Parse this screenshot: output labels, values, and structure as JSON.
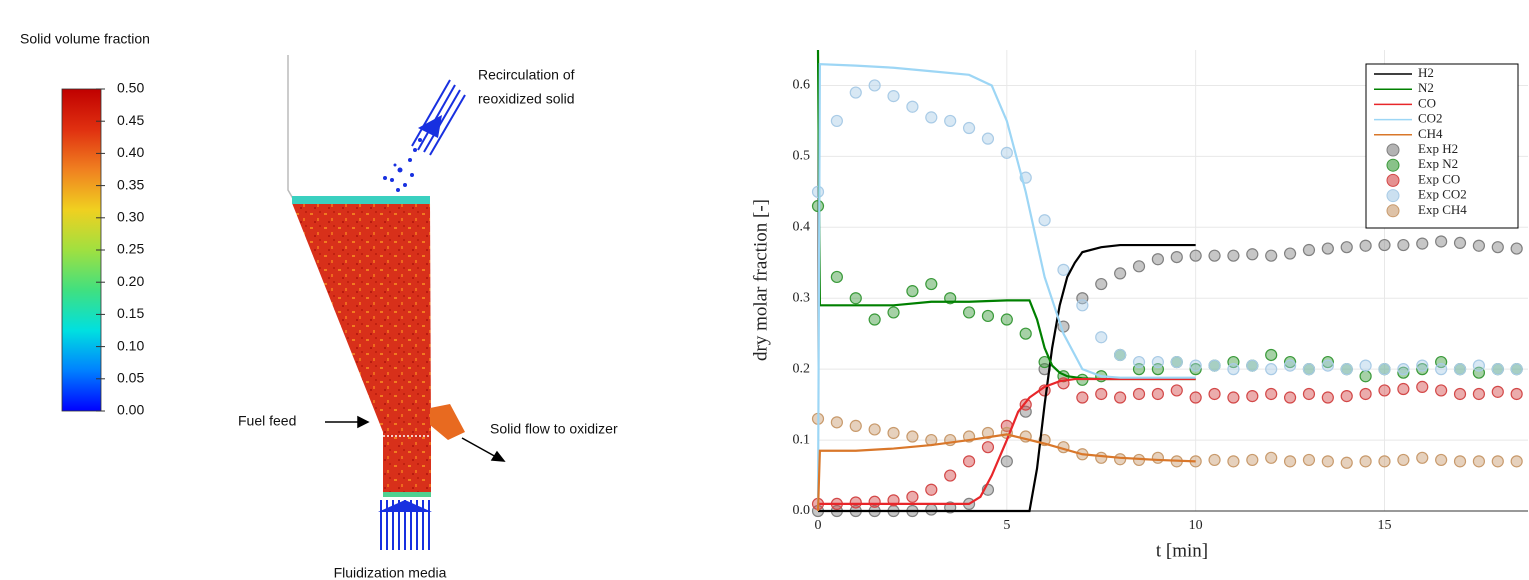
{
  "chart_data": [
    {
      "type": "colorbar",
      "title": "Solid volume fraction",
      "ylim": [
        0,
        0.5
      ],
      "yticks": [
        {
          "value": 0,
          "label": "0.00"
        },
        {
          "value": 0.05,
          "label": "0.05"
        },
        {
          "value": 0.1,
          "label": "0.10"
        },
        {
          "value": 0.15,
          "label": "0.15"
        },
        {
          "value": 0.2,
          "label": "0.20"
        },
        {
          "value": 0.25,
          "label": "0.25"
        },
        {
          "value": 0.3,
          "label": "0.30"
        },
        {
          "value": 0.35,
          "label": "0.35"
        },
        {
          "value": 0.4,
          "label": "0.40"
        },
        {
          "value": 0.45,
          "label": "0.45"
        },
        {
          "value": 0.5,
          "label": "0.50"
        }
      ],
      "colors": [
        "#0000ff",
        "#0080ff",
        "#00e0e0",
        "#40e080",
        "#a0e040",
        "#f0d020",
        "#f08020",
        "#e03010",
        "#c00000"
      ]
    },
    {
      "type": "line",
      "xlabel": "t [min]",
      "ylabel": "dry molar fraction [-]",
      "grid": true,
      "legend": "upper right",
      "xlim": [
        0,
        18.8
      ],
      "ylim": [
        0,
        0.65
      ],
      "xticks": [
        0,
        5,
        10,
        15
      ],
      "yticks": [
        {
          "value": 0,
          "label": "0.0"
        },
        0.1,
        0.2,
        0.3,
        0.4,
        0.5,
        0.6
      ],
      "x": [
        0,
        0.5,
        1,
        1.5,
        2,
        2.5,
        3,
        3.5,
        4,
        4.5,
        5,
        5.5,
        6,
        6.5,
        7,
        7.5,
        8,
        8.5,
        9,
        9.5,
        10,
        10.5,
        11,
        11.5,
        12,
        12.5,
        13,
        13.5,
        14,
        14.5,
        15,
        15.5,
        16,
        16.5,
        17,
        17.5,
        18,
        18.5
      ],
      "series": [
        {
          "name": "H2",
          "style": "line",
          "color": "#000000",
          "x": [
            0,
            5,
            5.6,
            5.8,
            6,
            6.2,
            6.4,
            6.6,
            6.8,
            7,
            7.5,
            8,
            9,
            10
          ],
          "values": [
            0,
            0,
            0,
            0.06,
            0.15,
            0.23,
            0.29,
            0.33,
            0.35,
            0.365,
            0.372,
            0.375,
            0.375,
            0.375
          ]
        },
        {
          "name": "N2",
          "style": "line",
          "color": "#008000",
          "x": [
            0,
            0.05,
            1,
            2,
            3,
            4,
            5,
            5.6,
            5.8,
            6,
            6.2,
            6.4,
            6.6,
            7,
            7.5,
            8,
            9,
            10
          ],
          "values": [
            0.65,
            0.29,
            0.29,
            0.29,
            0.295,
            0.295,
            0.297,
            0.297,
            0.27,
            0.23,
            0.205,
            0.195,
            0.19,
            0.187,
            0.186,
            0.186,
            0.186,
            0.186
          ]
        },
        {
          "name": "CO",
          "style": "line",
          "color": "#e8262a",
          "x": [
            0,
            1,
            2,
            3,
            4,
            4.3,
            4.6,
            5,
            5.3,
            5.6,
            6,
            6.4,
            6.8,
            7.5,
            8,
            9,
            10
          ],
          "values": [
            0.01,
            0.01,
            0.01,
            0.01,
            0.01,
            0.02,
            0.05,
            0.1,
            0.14,
            0.16,
            0.175,
            0.183,
            0.186,
            0.186,
            0.186,
            0.186,
            0.186
          ]
        },
        {
          "name": "CO2",
          "style": "line",
          "color": "#9dd6f5",
          "x": [
            0,
            0.05,
            1,
            2,
            3,
            4,
            4.6,
            5,
            5.5,
            6,
            6.5,
            7,
            7.5,
            8,
            9,
            10
          ],
          "values": [
            0,
            0.63,
            0.628,
            0.625,
            0.62,
            0.615,
            0.6,
            0.55,
            0.45,
            0.33,
            0.25,
            0.2,
            0.19,
            0.188,
            0.188,
            0.188
          ]
        },
        {
          "name": "CH4",
          "style": "line",
          "color": "#d9772a",
          "x": [
            0,
            0.05,
            1,
            2,
            3,
            4,
            5,
            6,
            7,
            8,
            9,
            10
          ],
          "values": [
            0,
            0.085,
            0.085,
            0.088,
            0.093,
            0.1,
            0.108,
            0.095,
            0.08,
            0.075,
            0.072,
            0.07
          ]
        },
        {
          "name": "Exp H2",
          "style": "marker",
          "color": "#808080",
          "values": [
            0,
            0,
            0,
            0,
            0,
            0,
            0.002,
            0.005,
            0.01,
            0.03,
            0.07,
            0.14,
            0.2,
            0.26,
            0.3,
            0.32,
            0.335,
            0.345,
            0.355,
            0.358,
            0.36,
            0.36,
            0.36,
            0.362,
            0.36,
            0.363,
            0.368,
            0.37,
            0.372,
            0.374,
            0.375,
            0.375,
            0.377,
            0.38,
            0.378,
            0.374,
            0.372,
            0.37
          ]
        },
        {
          "name": "Exp N2",
          "style": "marker",
          "color": "#3a9a3a",
          "values": [
            0.43,
            0.33,
            0.3,
            0.27,
            0.28,
            0.31,
            0.32,
            0.3,
            0.28,
            0.275,
            0.27,
            0.25,
            0.21,
            0.19,
            0.185,
            0.19,
            0.22,
            0.2,
            0.2,
            0.21,
            0.2,
            0.205,
            0.21,
            0.205,
            0.22,
            0.21,
            0.2,
            0.21,
            0.2,
            0.19,
            0.2,
            0.195,
            0.2,
            0.21,
            0.2,
            0.195,
            0.2,
            0.2
          ]
        },
        {
          "name": "Exp CO",
          "style": "marker",
          "color": "#d34848",
          "values": [
            0.01,
            0.01,
            0.012,
            0.013,
            0.015,
            0.02,
            0.03,
            0.05,
            0.07,
            0.09,
            0.12,
            0.15,
            0.17,
            0.18,
            0.16,
            0.165,
            0.16,
            0.165,
            0.165,
            0.17,
            0.16,
            0.165,
            0.16,
            0.162,
            0.165,
            0.16,
            0.165,
            0.16,
            0.162,
            0.165,
            0.17,
            0.172,
            0.175,
            0.17,
            0.165,
            0.165,
            0.168,
            0.165
          ]
        },
        {
          "name": "Exp CO2",
          "style": "marker",
          "color": "#a9cbe6",
          "values": [
            0.45,
            0.55,
            0.59,
            0.6,
            0.585,
            0.57,
            0.555,
            0.55,
            0.54,
            0.525,
            0.505,
            0.47,
            0.41,
            0.34,
            0.29,
            0.245,
            0.22,
            0.21,
            0.21,
            0.21,
            0.205,
            0.205,
            0.2,
            0.205,
            0.2,
            0.205,
            0.2,
            0.205,
            0.2,
            0.205,
            0.2,
            0.2,
            0.205,
            0.2,
            0.2,
            0.205,
            0.2,
            0.2
          ]
        },
        {
          "name": "Exp CH4",
          "style": "marker",
          "color": "#c89a6c",
          "values": [
            0.13,
            0.125,
            0.12,
            0.115,
            0.11,
            0.105,
            0.1,
            0.1,
            0.105,
            0.11,
            0.11,
            0.105,
            0.1,
            0.09,
            0.08,
            0.075,
            0.073,
            0.072,
            0.075,
            0.07,
            0.07,
            0.072,
            0.07,
            0.072,
            0.075,
            0.07,
            0.072,
            0.07,
            0.068,
            0.07,
            0.07,
            0.072,
            0.075,
            0.072,
            0.07,
            0.07,
            0.07,
            0.07
          ]
        }
      ]
    }
  ],
  "simulation": {
    "recirculation": [
      "Recirculation of",
      "reoxidized solid"
    ],
    "fuel_feed": "Fuel feed",
    "solid_flow": "Solid flow to oxidizer",
    "fluidization": "Fluidization media"
  }
}
